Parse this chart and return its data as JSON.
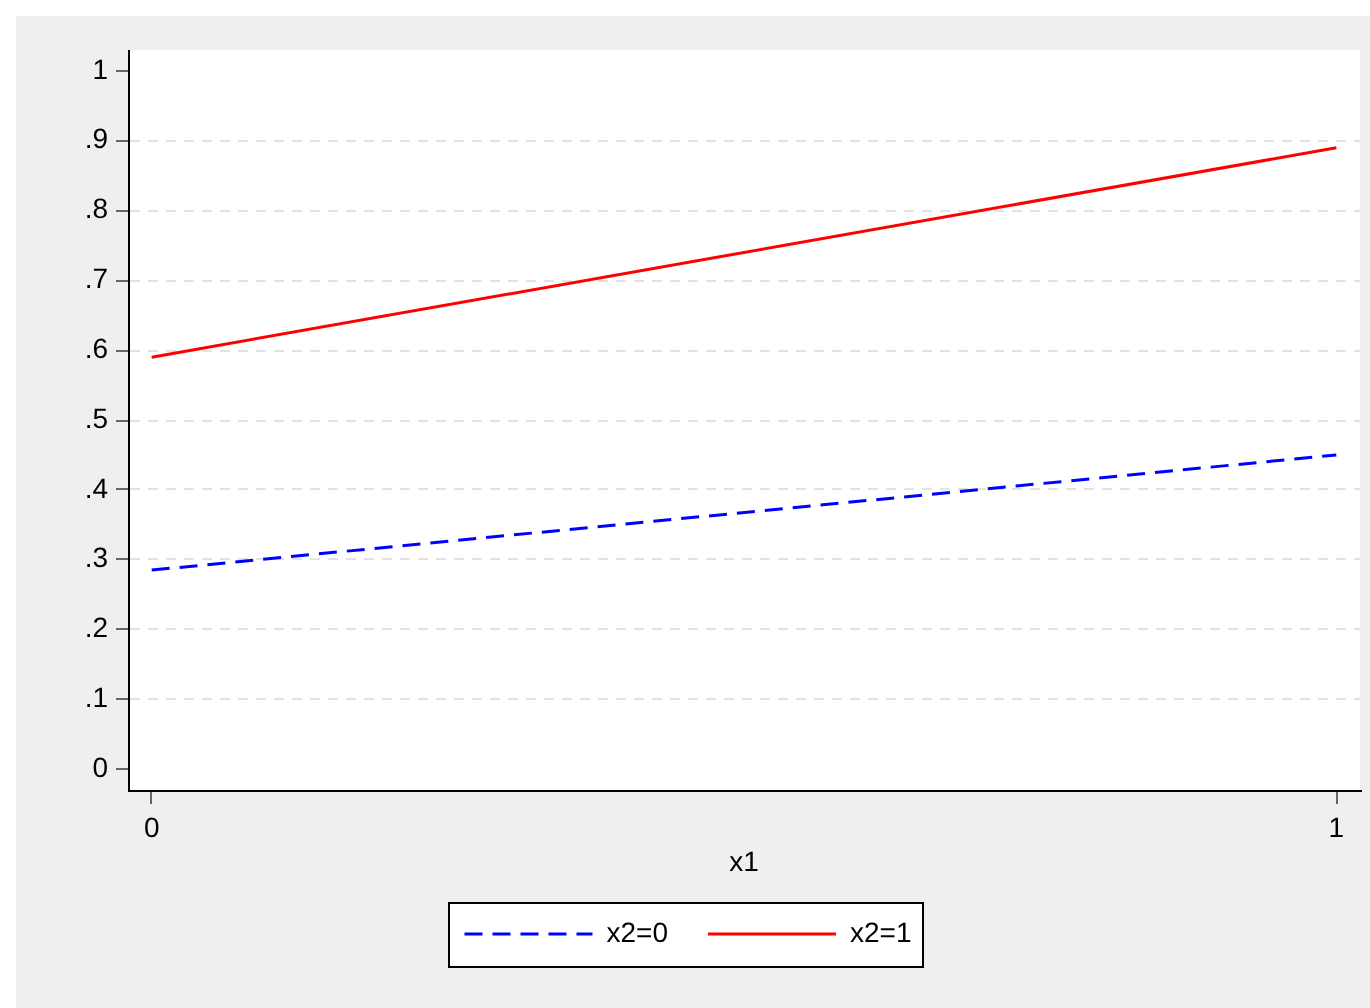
{
  "chart_data": {
    "type": "line",
    "xlabel": "x1",
    "x": [
      0,
      1
    ],
    "series": [
      {
        "name": "x2=0",
        "color": "#0000ff",
        "values": [
          0.285,
          0.45
        ],
        "line_style": "dashed"
      },
      {
        "name": "x2=1",
        "color": "#ff0000",
        "values": [
          0.59,
          0.89
        ],
        "line_style": "solid"
      }
    ],
    "xlim": [
      -0.02,
      1.02
    ],
    "ylim": [
      -0.03,
      1.03
    ],
    "xticks": [
      0,
      1
    ],
    "yticks": [
      0,
      {
        "value": 0.1,
        "label": ".1"
      },
      {
        "value": 0.2,
        "label": ".2"
      },
      {
        "value": 0.3,
        "label": ".3"
      },
      {
        "value": 0.4,
        "label": ".4"
      },
      {
        "value": 0.5,
        "label": ".5"
      },
      {
        "value": 0.6,
        "label": ".6"
      },
      {
        "value": 0.7,
        "label": ".7"
      },
      {
        "value": 0.8,
        "label": ".8"
      },
      {
        "value": 0.9,
        "label": ".9"
      },
      1
    ],
    "grid": "y",
    "legend": "bottom",
    "marker": "none"
  }
}
